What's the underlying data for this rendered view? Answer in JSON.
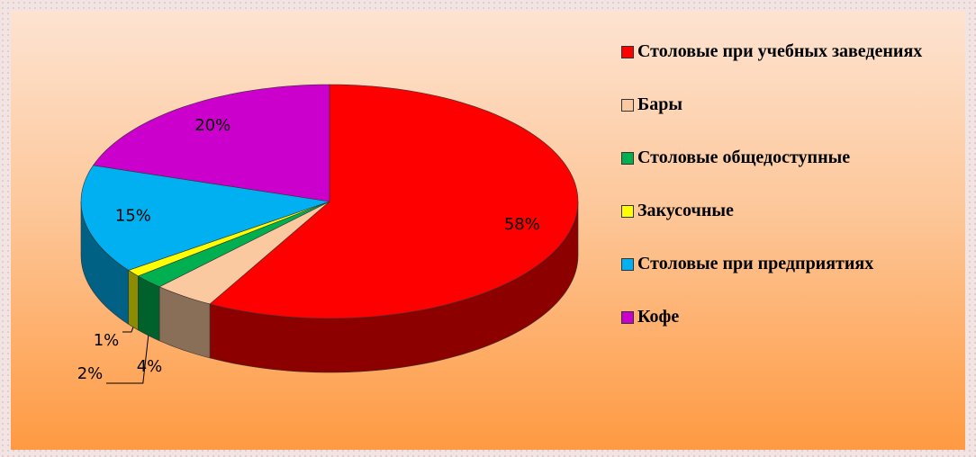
{
  "chart_data": {
    "type": "pie3d",
    "categories": [
      "Столовые при учебных заведениях",
      "Бары",
      "Столовые общедоступные",
      "Закусочные",
      "Столовые при предприятиях",
      "Кофе"
    ],
    "values": [
      58,
      4,
      2,
      1,
      15,
      20
    ],
    "value_labels": [
      "58%",
      "4%",
      "2%",
      "1%",
      "15%",
      "20%"
    ],
    "colors": [
      "#ff0000",
      "#fbc9a0",
      "#00b050",
      "#ffff00",
      "#00b0f0",
      "#cc00cc"
    ],
    "legend": "right"
  }
}
